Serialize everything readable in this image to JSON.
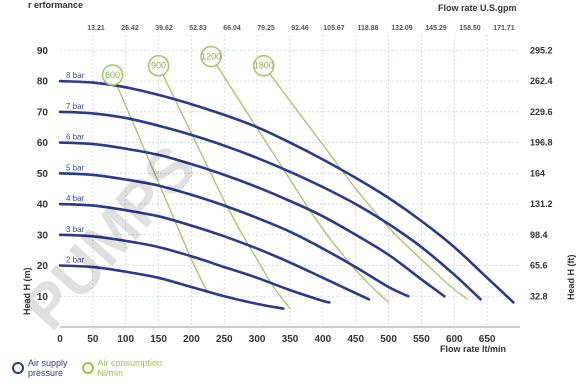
{
  "header": {
    "top_axis_title": "Flow rate U.S.gpm",
    "top_left_fragment": "r erformance"
  },
  "watermark": {
    "text": "PUMPS"
  },
  "chart_data": {
    "type": "line",
    "xlabel": "Flow rate  lt/min",
    "ylabel": "Head H (m)",
    "ylabel_right": "Head H (ft)",
    "x_ticks": [
      0,
      50,
      100,
      150,
      200,
      250,
      300,
      350,
      400,
      450,
      500,
      550,
      600,
      650
    ],
    "y_ticks": [
      10,
      20,
      30,
      40,
      50,
      60,
      70,
      80,
      90
    ],
    "y_ticks_right": [
      "32.8",
      "65.6",
      "98.4",
      "131.2",
      "164",
      "196.8",
      "229.6",
      "262.4",
      "295.2"
    ],
    "top_ticks": [
      "13.21",
      "26.42",
      "39.62",
      "52.83",
      "66.04",
      "79.25",
      "92.46",
      "105.67",
      "118.88",
      "132.09",
      "145.29",
      "158.50",
      "171.71"
    ],
    "xlim": [
      0,
      700
    ],
    "ylim": [
      0,
      95
    ],
    "grid": true,
    "series": [
      {
        "name": "8 bar",
        "kind": "supply_pressure",
        "x": [
          0,
          50,
          100,
          150,
          200,
          250,
          300,
          350,
          400,
          450,
          500,
          550,
          600,
          650,
          690
        ],
        "y": [
          80,
          79.5,
          78,
          75.5,
          72.5,
          69,
          65,
          60,
          54.5,
          48.5,
          42,
          34.5,
          26,
          16,
          8
        ]
      },
      {
        "name": "7 bar",
        "kind": "supply_pressure",
        "x": [
          0,
          50,
          100,
          150,
          200,
          250,
          300,
          350,
          400,
          450,
          500,
          550,
          600,
          640
        ],
        "y": [
          70,
          69.5,
          68,
          65.5,
          62.5,
          59,
          55,
          50.5,
          45.5,
          40,
          33.5,
          26,
          17,
          9
        ]
      },
      {
        "name": "6 bar",
        "kind": "supply_pressure",
        "x": [
          0,
          50,
          100,
          150,
          200,
          250,
          300,
          350,
          400,
          450,
          500,
          550,
          585
        ],
        "y": [
          60,
          59.5,
          58,
          56,
          53,
          49.5,
          45.5,
          41,
          36,
          30,
          23.5,
          15.5,
          10
        ]
      },
      {
        "name": "5 bar",
        "kind": "supply_pressure",
        "x": [
          0,
          50,
          100,
          150,
          200,
          250,
          300,
          350,
          400,
          450,
          500,
          530
        ],
        "y": [
          50,
          49.5,
          48,
          46,
          43,
          39.5,
          35.5,
          31,
          25.5,
          19.5,
          13,
          10
        ]
      },
      {
        "name": "4 bar",
        "kind": "supply_pressure",
        "x": [
          0,
          50,
          100,
          150,
          200,
          250,
          300,
          350,
          400,
          450,
          470
        ],
        "y": [
          40,
          39.5,
          38,
          36,
          33,
          29.5,
          25.5,
          21,
          16,
          11,
          9
        ]
      },
      {
        "name": "3 bar",
        "kind": "supply_pressure",
        "x": [
          0,
          50,
          100,
          150,
          200,
          250,
          300,
          350,
          400,
          410
        ],
        "y": [
          30,
          29.5,
          28,
          26,
          23,
          19.5,
          16,
          12,
          8.5,
          8
        ]
      },
      {
        "name": "2 bar",
        "kind": "supply_pressure",
        "x": [
          0,
          50,
          100,
          150,
          200,
          250,
          300,
          340
        ],
        "y": [
          20,
          19.5,
          18,
          16,
          13,
          10,
          7.5,
          6
        ]
      },
      {
        "name": "600",
        "kind": "air_consumption",
        "x": [
          80,
          100,
          120,
          140,
          160,
          180,
          200,
          225
        ],
        "y": [
          82,
          72,
          62,
          52,
          42,
          32,
          22,
          11
        ]
      },
      {
        "name": "900",
        "kind": "air_consumption",
        "x": [
          150,
          175,
          200,
          225,
          250,
          275,
          300,
          325,
          350
        ],
        "y": [
          85,
          74,
          63,
          52,
          41,
          31,
          22,
          13,
          6
        ]
      },
      {
        "name": "1200",
        "kind": "air_consumption",
        "x": [
          230,
          260,
          290,
          320,
          350,
          380,
          410,
          440,
          470,
          500
        ],
        "y": [
          88,
          78,
          68,
          58,
          48,
          38,
          29,
          21,
          14,
          8
        ]
      },
      {
        "name": "1800",
        "kind": "air_consumption",
        "x": [
          310,
          345,
          380,
          415,
          450,
          485,
          520,
          555,
          590,
          620
        ],
        "y": [
          85,
          75,
          65,
          55,
          45,
          36,
          28,
          21,
          14,
          9
        ]
      }
    ],
    "legend": [
      {
        "label": "Air supply\npressure",
        "color": "#2b3a8c"
      },
      {
        "label": "Air consumption\nNl/min",
        "color": "#9cc04a"
      }
    ],
    "colors": {
      "pressure": "#2b3a8c",
      "air": "#a8c86a",
      "air_text": "#8cb04a",
      "grid": "#c9d3e8"
    }
  }
}
